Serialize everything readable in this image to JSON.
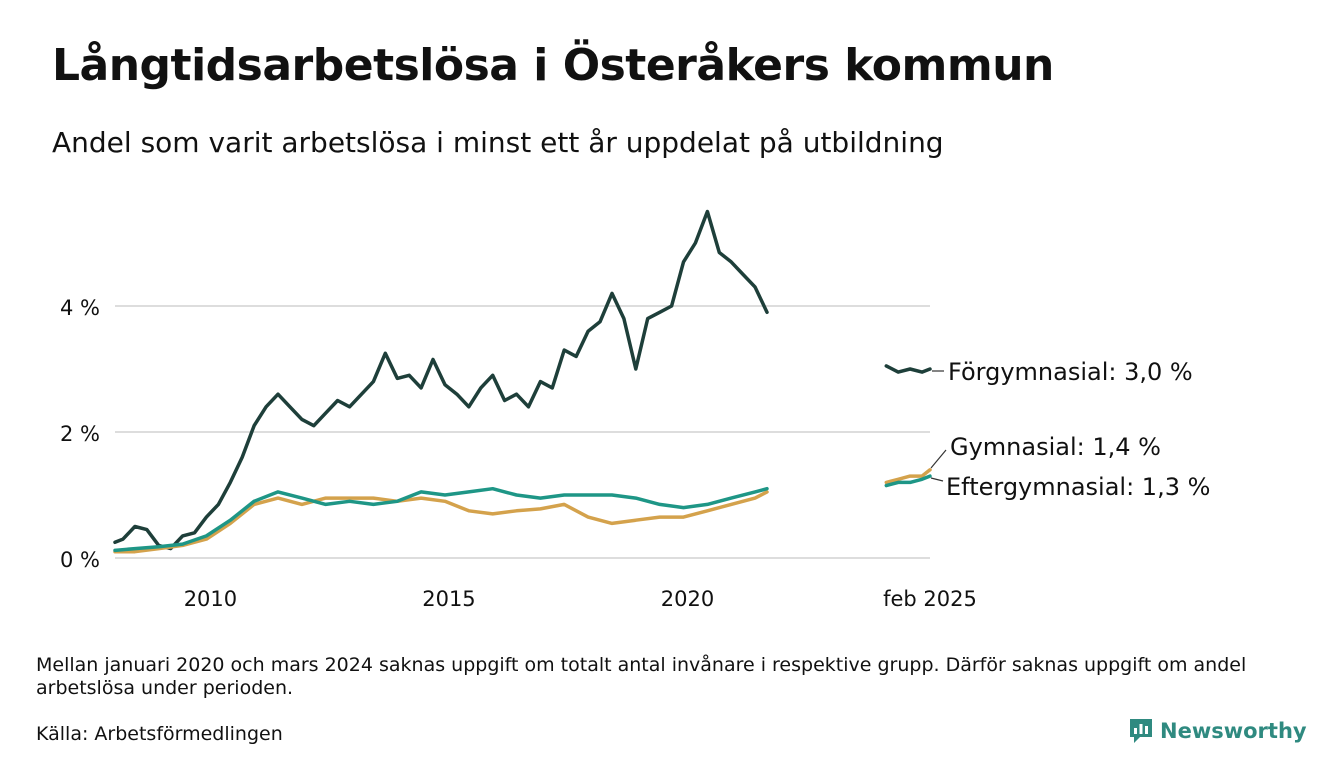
{
  "header": {
    "title": "Långtidsarbetslösa i Österåkers kommun",
    "subtitle": "Andel som varit arbetslösa i minst ett år uppdelat på utbildning"
  },
  "footer": {
    "note": "Mellan januari 2020 och mars 2024 saknas uppgift om totalt antal invånare i respektive grupp. Därför saknas uppgift om andel arbetslösa under perioden.",
    "source": "Källa: Arbetsförmedlingen",
    "brand": "Newsworthy"
  },
  "colors": {
    "forgymnasial": "#1e3f3a",
    "gymnasial": "#d4a24c",
    "eftergymnasial": "#1e9686",
    "grid": "#dddddd",
    "brand": "#2f8a80"
  },
  "chart_data": {
    "type": "line",
    "x_domain": [
      "2008-01",
      "2025-02"
    ],
    "ylim": [
      0,
      6
    ],
    "x_ticks": [
      {
        "date": "2010-01",
        "label": "2010"
      },
      {
        "date": "2015-01",
        "label": "2015"
      },
      {
        "date": "2020-01",
        "label": "2020"
      },
      {
        "date": "2025-02",
        "label": "feb 2025"
      }
    ],
    "y_ticks": [
      {
        "value": 0,
        "label": "0 %"
      },
      {
        "value": 2,
        "label": "2 %"
      },
      {
        "value": 4,
        "label": "4 %"
      }
    ],
    "grid": true,
    "series": [
      {
        "name": "Förgymnasial",
        "color_key": "forgymnasial",
        "end_label": "Förgymnasial: 3,0 %",
        "segments": [
          {
            "points": [
              [
                "2008-01",
                0.25
              ],
              [
                "2008-03",
                0.3
              ],
              [
                "2008-06",
                0.5
              ],
              [
                "2008-09",
                0.45
              ],
              [
                "2008-12",
                0.2
              ],
              [
                "2009-03",
                0.15
              ],
              [
                "2009-06",
                0.35
              ],
              [
                "2009-09",
                0.4
              ],
              [
                "2009-12",
                0.65
              ],
              [
                "2010-03",
                0.85
              ],
              [
                "2010-06",
                1.2
              ],
              [
                "2010-09",
                1.6
              ],
              [
                "2010-12",
                2.1
              ],
              [
                "2011-03",
                2.4
              ],
              [
                "2011-06",
                2.6
              ],
              [
                "2011-09",
                2.4
              ],
              [
                "2011-12",
                2.2
              ],
              [
                "2012-03",
                2.1
              ],
              [
                "2012-06",
                2.3
              ],
              [
                "2012-09",
                2.5
              ],
              [
                "2012-12",
                2.4
              ],
              [
                "2013-03",
                2.6
              ],
              [
                "2013-06",
                2.8
              ],
              [
                "2013-09",
                3.25
              ],
              [
                "2013-12",
                2.85
              ],
              [
                "2014-03",
                2.9
              ],
              [
                "2014-06",
                2.7
              ],
              [
                "2014-09",
                3.15
              ],
              [
                "2014-12",
                2.75
              ],
              [
                "2015-03",
                2.6
              ],
              [
                "2015-06",
                2.4
              ],
              [
                "2015-09",
                2.7
              ],
              [
                "2015-12",
                2.9
              ],
              [
                "2016-03",
                2.5
              ],
              [
                "2016-06",
                2.6
              ],
              [
                "2016-09",
                2.4
              ],
              [
                "2016-12",
                2.8
              ],
              [
                "2017-03",
                2.7
              ],
              [
                "2017-06",
                3.3
              ],
              [
                "2017-09",
                3.2
              ],
              [
                "2017-12",
                3.6
              ],
              [
                "2018-03",
                3.75
              ],
              [
                "2018-06",
                4.2
              ],
              [
                "2018-09",
                3.8
              ],
              [
                "2018-12",
                3.0
              ],
              [
                "2019-03",
                3.8
              ],
              [
                "2019-06",
                3.9
              ],
              [
                "2019-09",
                4.0
              ],
              [
                "2019-12",
                4.7
              ],
              [
                "2020-03",
                5.0
              ],
              [
                "2020-06",
                5.5
              ],
              [
                "2020-09",
                4.85
              ],
              [
                "2020-12",
                4.7
              ],
              [
                "2021-03",
                4.5
              ],
              [
                "2021-06",
                4.3
              ],
              [
                "2021-09",
                3.9
              ]
            ]
          },
          {
            "points": [
              [
                "2024-03",
                3.05
              ],
              [
                "2024-06",
                2.95
              ],
              [
                "2024-09",
                3.0
              ],
              [
                "2024-12",
                2.95
              ],
              [
                "2025-02",
                3.0
              ]
            ]
          }
        ]
      },
      {
        "name": "Gymnasial",
        "color_key": "gymnasial",
        "end_label": "Gymnasial: 1,4 %",
        "segments": [
          {
            "points": [
              [
                "2008-01",
                0.1
              ],
              [
                "2008-06",
                0.1
              ],
              [
                "2008-12",
                0.15
              ],
              [
                "2009-06",
                0.2
              ],
              [
                "2009-12",
                0.3
              ],
              [
                "2010-06",
                0.55
              ],
              [
                "2010-12",
                0.85
              ],
              [
                "2011-06",
                0.95
              ],
              [
                "2011-12",
                0.85
              ],
              [
                "2012-06",
                0.95
              ],
              [
                "2012-12",
                0.95
              ],
              [
                "2013-06",
                0.95
              ],
              [
                "2013-12",
                0.9
              ],
              [
                "2014-06",
                0.95
              ],
              [
                "2014-12",
                0.9
              ],
              [
                "2015-06",
                0.75
              ],
              [
                "2015-12",
                0.7
              ],
              [
                "2016-06",
                0.75
              ],
              [
                "2016-12",
                0.78
              ],
              [
                "2017-06",
                0.85
              ],
              [
                "2017-12",
                0.65
              ],
              [
                "2018-06",
                0.55
              ],
              [
                "2018-12",
                0.6
              ],
              [
                "2019-06",
                0.65
              ],
              [
                "2019-12",
                0.65
              ],
              [
                "2020-06",
                0.75
              ],
              [
                "2020-12",
                0.85
              ],
              [
                "2021-06",
                0.95
              ],
              [
                "2021-09",
                1.05
              ]
            ]
          },
          {
            "points": [
              [
                "2024-03",
                1.2
              ],
              [
                "2024-06",
                1.25
              ],
              [
                "2024-09",
                1.3
              ],
              [
                "2024-12",
                1.3
              ],
              [
                "2025-02",
                1.4
              ]
            ]
          }
        ]
      },
      {
        "name": "Eftergymnasial",
        "color_key": "eftergymnasial",
        "end_label": "Eftergymnasial: 1,3 %",
        "segments": [
          {
            "points": [
              [
                "2008-01",
                0.12
              ],
              [
                "2008-06",
                0.15
              ],
              [
                "2008-12",
                0.18
              ],
              [
                "2009-06",
                0.22
              ],
              [
                "2009-12",
                0.35
              ],
              [
                "2010-06",
                0.6
              ],
              [
                "2010-12",
                0.9
              ],
              [
                "2011-06",
                1.05
              ],
              [
                "2011-12",
                0.95
              ],
              [
                "2012-06",
                0.85
              ],
              [
                "2012-12",
                0.9
              ],
              [
                "2013-06",
                0.85
              ],
              [
                "2013-12",
                0.9
              ],
              [
                "2014-06",
                1.05
              ],
              [
                "2014-12",
                1.0
              ],
              [
                "2015-06",
                1.05
              ],
              [
                "2015-12",
                1.1
              ],
              [
                "2016-06",
                1.0
              ],
              [
                "2016-12",
                0.95
              ],
              [
                "2017-06",
                1.0
              ],
              [
                "2017-12",
                1.0
              ],
              [
                "2018-06",
                1.0
              ],
              [
                "2018-12",
                0.95
              ],
              [
                "2019-06",
                0.85
              ],
              [
                "2019-12",
                0.8
              ],
              [
                "2020-06",
                0.85
              ],
              [
                "2020-12",
                0.95
              ],
              [
                "2021-06",
                1.05
              ],
              [
                "2021-09",
                1.1
              ]
            ]
          },
          {
            "points": [
              [
                "2024-03",
                1.15
              ],
              [
                "2024-06",
                1.2
              ],
              [
                "2024-09",
                1.2
              ],
              [
                "2024-12",
                1.25
              ],
              [
                "2025-02",
                1.3
              ]
            ]
          }
        ]
      }
    ]
  }
}
